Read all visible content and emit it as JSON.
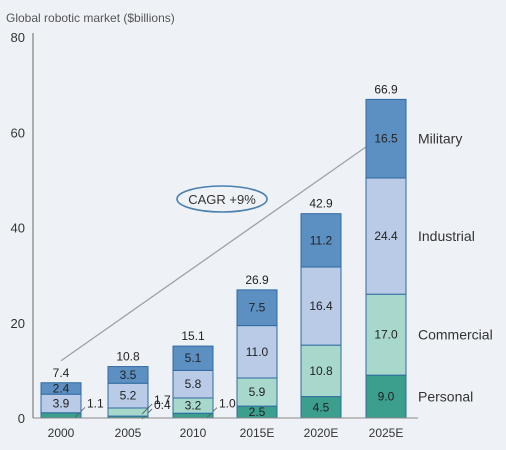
{
  "chart_data": {
    "type": "bar",
    "stacked": true,
    "title": "Global robotic market ($billions)",
    "categories": [
      "2000",
      "2005",
      "2010",
      "2015E",
      "2020E",
      "2025E"
    ],
    "series": [
      {
        "name": "Personal",
        "values": [
          1.1,
          0.4,
          1.0,
          2.5,
          4.5,
          9.0
        ],
        "labels": [
          "1.1",
          "0.4",
          "1.0",
          "2.5",
          "4.5",
          "9.0"
        ],
        "color": "#3c9e8d"
      },
      {
        "name": "Commercial",
        "values": [
          0.0,
          1.7,
          3.2,
          5.9,
          10.8,
          17.0
        ],
        "labels": [
          "",
          "1.7",
          "3.2",
          "5.9",
          "10.8",
          "17.0"
        ],
        "color": "#a8d8cc"
      },
      {
        "name": "Industrial",
        "values": [
          3.9,
          5.2,
          5.8,
          11.0,
          16.4,
          24.4
        ],
        "labels": [
          "3.9",
          "5.2",
          "5.8",
          "11.0",
          "16.4",
          "24.4"
        ],
        "color": "#b9cbe6"
      },
      {
        "name": "Military",
        "values": [
          2.4,
          3.5,
          5.1,
          7.5,
          11.2,
          16.5
        ],
        "labels": [
          "2.4",
          "3.5",
          "5.1",
          "7.5",
          "11.2",
          "16.5"
        ],
        "color": "#5c8fc2"
      }
    ],
    "totals": [
      "7.4",
      "10.8",
      "15.1",
      "26.9",
      "42.9",
      "66.9"
    ],
    "y_ticks": [
      "0",
      "20",
      "40",
      "60",
      "80"
    ],
    "ylim": [
      0,
      80
    ],
    "annotation": "CAGR +9%",
    "grid": false,
    "legend_position": "right, labels beside last bar"
  }
}
